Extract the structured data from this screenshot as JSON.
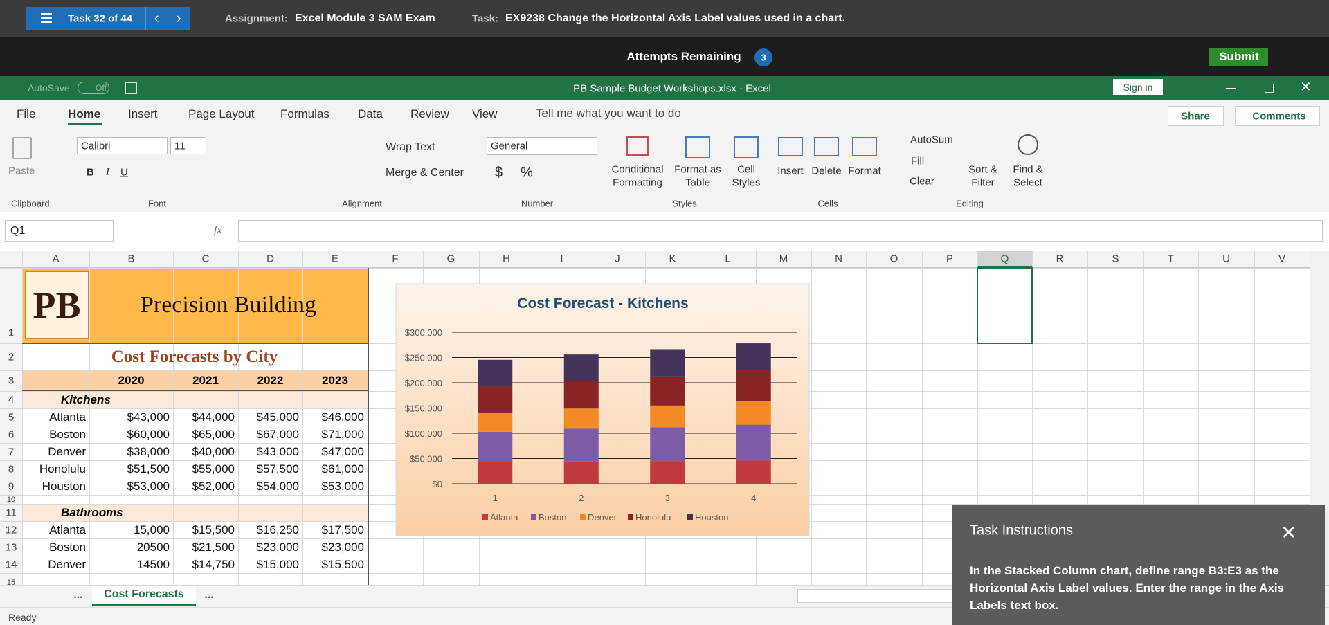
{
  "task_bar": {
    "task_counter": "Task 32 of 44",
    "assignment_label": "Assignment:",
    "assignment": "Excel Module 3 SAM Exam",
    "task_label": "Task:",
    "task": "EX9238 Change the Horizontal Axis Label values used in a chart."
  },
  "attempts": {
    "label": "Attempts Remaining",
    "count": "3",
    "submit": "Submit"
  },
  "excel": {
    "autosave": "AutoSave",
    "autosave_state": "Off",
    "title": "PB Sample Budget Workshops.xlsx - Excel",
    "sign_in": "Sign in"
  },
  "menu": {
    "tabs": [
      "File",
      "Home",
      "Insert",
      "Page Layout",
      "Formulas",
      "Data",
      "Review",
      "View"
    ],
    "tell_me": "Tell me what you want to do",
    "share": "Share",
    "comments": "Comments"
  },
  "ribbon": {
    "paste": "Paste",
    "font_name": "Calibri",
    "font_size": "11",
    "bold": "B",
    "italic": "I",
    "underline": "U",
    "wrap_text": "Wrap Text",
    "merge_center": "Merge & Center",
    "number_format": "General",
    "currency": "$",
    "percent": "%",
    "conditional_formatting": [
      "Conditional",
      "Formatting"
    ],
    "format_as_table": [
      "Format as",
      "Table"
    ],
    "cell_styles": [
      "Cell",
      "Styles"
    ],
    "insert": "Insert",
    "delete": "Delete",
    "format": "Format",
    "autosum": "AutoSum",
    "fill": "Fill",
    "clear": "Clear",
    "sort_filter": [
      "Sort &",
      "Filter"
    ],
    "find_select": [
      "Find &",
      "Select"
    ],
    "groups": [
      "Clipboard",
      "Font",
      "Alignment",
      "Number",
      "Styles",
      "Cells",
      "Editing"
    ]
  },
  "formula_bar": {
    "name_box": "Q1",
    "fx": "fx"
  },
  "columns": [
    "A",
    "B",
    "C",
    "D",
    "E",
    "F",
    "G",
    "H",
    "I",
    "J",
    "K",
    "L",
    "M",
    "N",
    "O",
    "P",
    "Q",
    "R",
    "S",
    "T",
    "U",
    "V"
  ],
  "rows": [
    "1",
    "2",
    "3",
    "4",
    "5",
    "6",
    "7",
    "8",
    "9",
    "10",
    "11",
    "12",
    "13",
    "14",
    "15"
  ],
  "sheet": {
    "logo": "PB",
    "company": "Precision Building",
    "subtitle": "Cost Forecasts by City",
    "years": [
      "2020",
      "2021",
      "2022",
      "2023"
    ],
    "sections": [
      {
        "title": "Kitchens",
        "rows": [
          [
            "Atlanta",
            "$43,000",
            "$44,000",
            "$45,000",
            "$46,000"
          ],
          [
            "Boston",
            "$60,000",
            "$65,000",
            "$67,000",
            "$71,000"
          ],
          [
            "Denver",
            "$38,000",
            "$40,000",
            "$43,000",
            "$47,000"
          ],
          [
            "Honolulu",
            "$51,500",
            "$55,000",
            "$57,500",
            "$61,000"
          ],
          [
            "Houston",
            "$53,000",
            "$52,000",
            "$54,000",
            "$53,000"
          ]
        ]
      },
      {
        "title": "Bathrooms",
        "rows": [
          [
            "Atlanta",
            "15,000",
            "$15,500",
            "$16,250",
            "$17,500"
          ],
          [
            "Boston",
            "20500",
            "$21,500",
            "$23,000",
            "$23,000"
          ],
          [
            "Denver",
            "14500",
            "$14,750",
            "$15,000",
            "$15,500"
          ]
        ]
      }
    ]
  },
  "sheet_tabs": {
    "active": "Cost Forecasts",
    "more": "..."
  },
  "status": "Ready",
  "chart_data": {
    "type": "stacked_bar",
    "title": "Cost Forecast - Kitchens",
    "categories": [
      "1",
      "2",
      "3",
      "4"
    ],
    "series": [
      {
        "name": "Atlanta",
        "color": "#c0393b",
        "values": [
          43000,
          44000,
          45000,
          46000
        ]
      },
      {
        "name": "Boston",
        "color": "#7d5ba6",
        "values": [
          60000,
          65000,
          67000,
          71000
        ]
      },
      {
        "name": "Denver",
        "color": "#f28a25",
        "values": [
          38000,
          40000,
          43000,
          47000
        ]
      },
      {
        "name": "Honolulu",
        "color": "#8a2424",
        "values": [
          51500,
          55000,
          57500,
          61000
        ]
      },
      {
        "name": "Houston",
        "color": "#46335a",
        "values": [
          53000,
          52000,
          54000,
          53000
        ]
      }
    ],
    "ylim": [
      0,
      300000
    ],
    "yticks": [
      {
        "value": 0,
        "label": "$0"
      },
      {
        "value": 50000,
        "label": "$50,000"
      },
      {
        "value": 100000,
        "label": "$100,000"
      },
      {
        "value": 150000,
        "label": "$150,000"
      },
      {
        "value": 200000,
        "label": "$200,000"
      },
      {
        "value": 250000,
        "label": "$250,000"
      },
      {
        "value": 300000,
        "label": "$300,000"
      }
    ],
    "grid": true,
    "legend": "bottom"
  },
  "task_panel": {
    "title": "Task Instructions",
    "body": "In the Stacked Column chart, define range B3:E3 as the Horizontal Axis Label values. Enter the range in the Axis Labels text box."
  }
}
